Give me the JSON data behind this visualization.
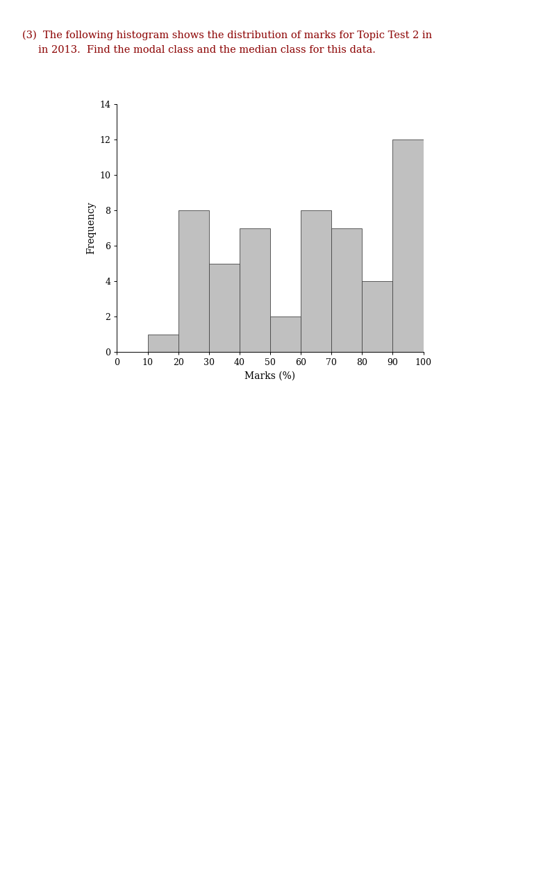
{
  "bin_edges": [
    0,
    10,
    20,
    30,
    40,
    50,
    60,
    70,
    80,
    90,
    100
  ],
  "frequencies": [
    0,
    1,
    8,
    5,
    7,
    2,
    8,
    7,
    4,
    12
  ],
  "bar_color": "#c0c0c0",
  "bar_edgecolor": "#444444",
  "xlabel": "Marks (%)",
  "ylabel": "Frequency",
  "ylim": [
    0,
    14
  ],
  "yticks": [
    0,
    2,
    4,
    6,
    8,
    10,
    12,
    14
  ],
  "xticks": [
    0,
    10,
    20,
    30,
    40,
    50,
    60,
    70,
    80,
    90,
    100
  ],
  "title_line1": "(3)  The following histogram shows the distribution of marks for Topic Test 2 in",
  "title_line2": "     in 2013.  Find the modal class and the median class for this data.",
  "title_color": "#8b0000",
  "title_fontsize": 10.5,
  "axis_fontsize": 9,
  "label_fontsize": 10,
  "fig_width": 8.02,
  "fig_height": 12.52,
  "fig_dpi": 100
}
